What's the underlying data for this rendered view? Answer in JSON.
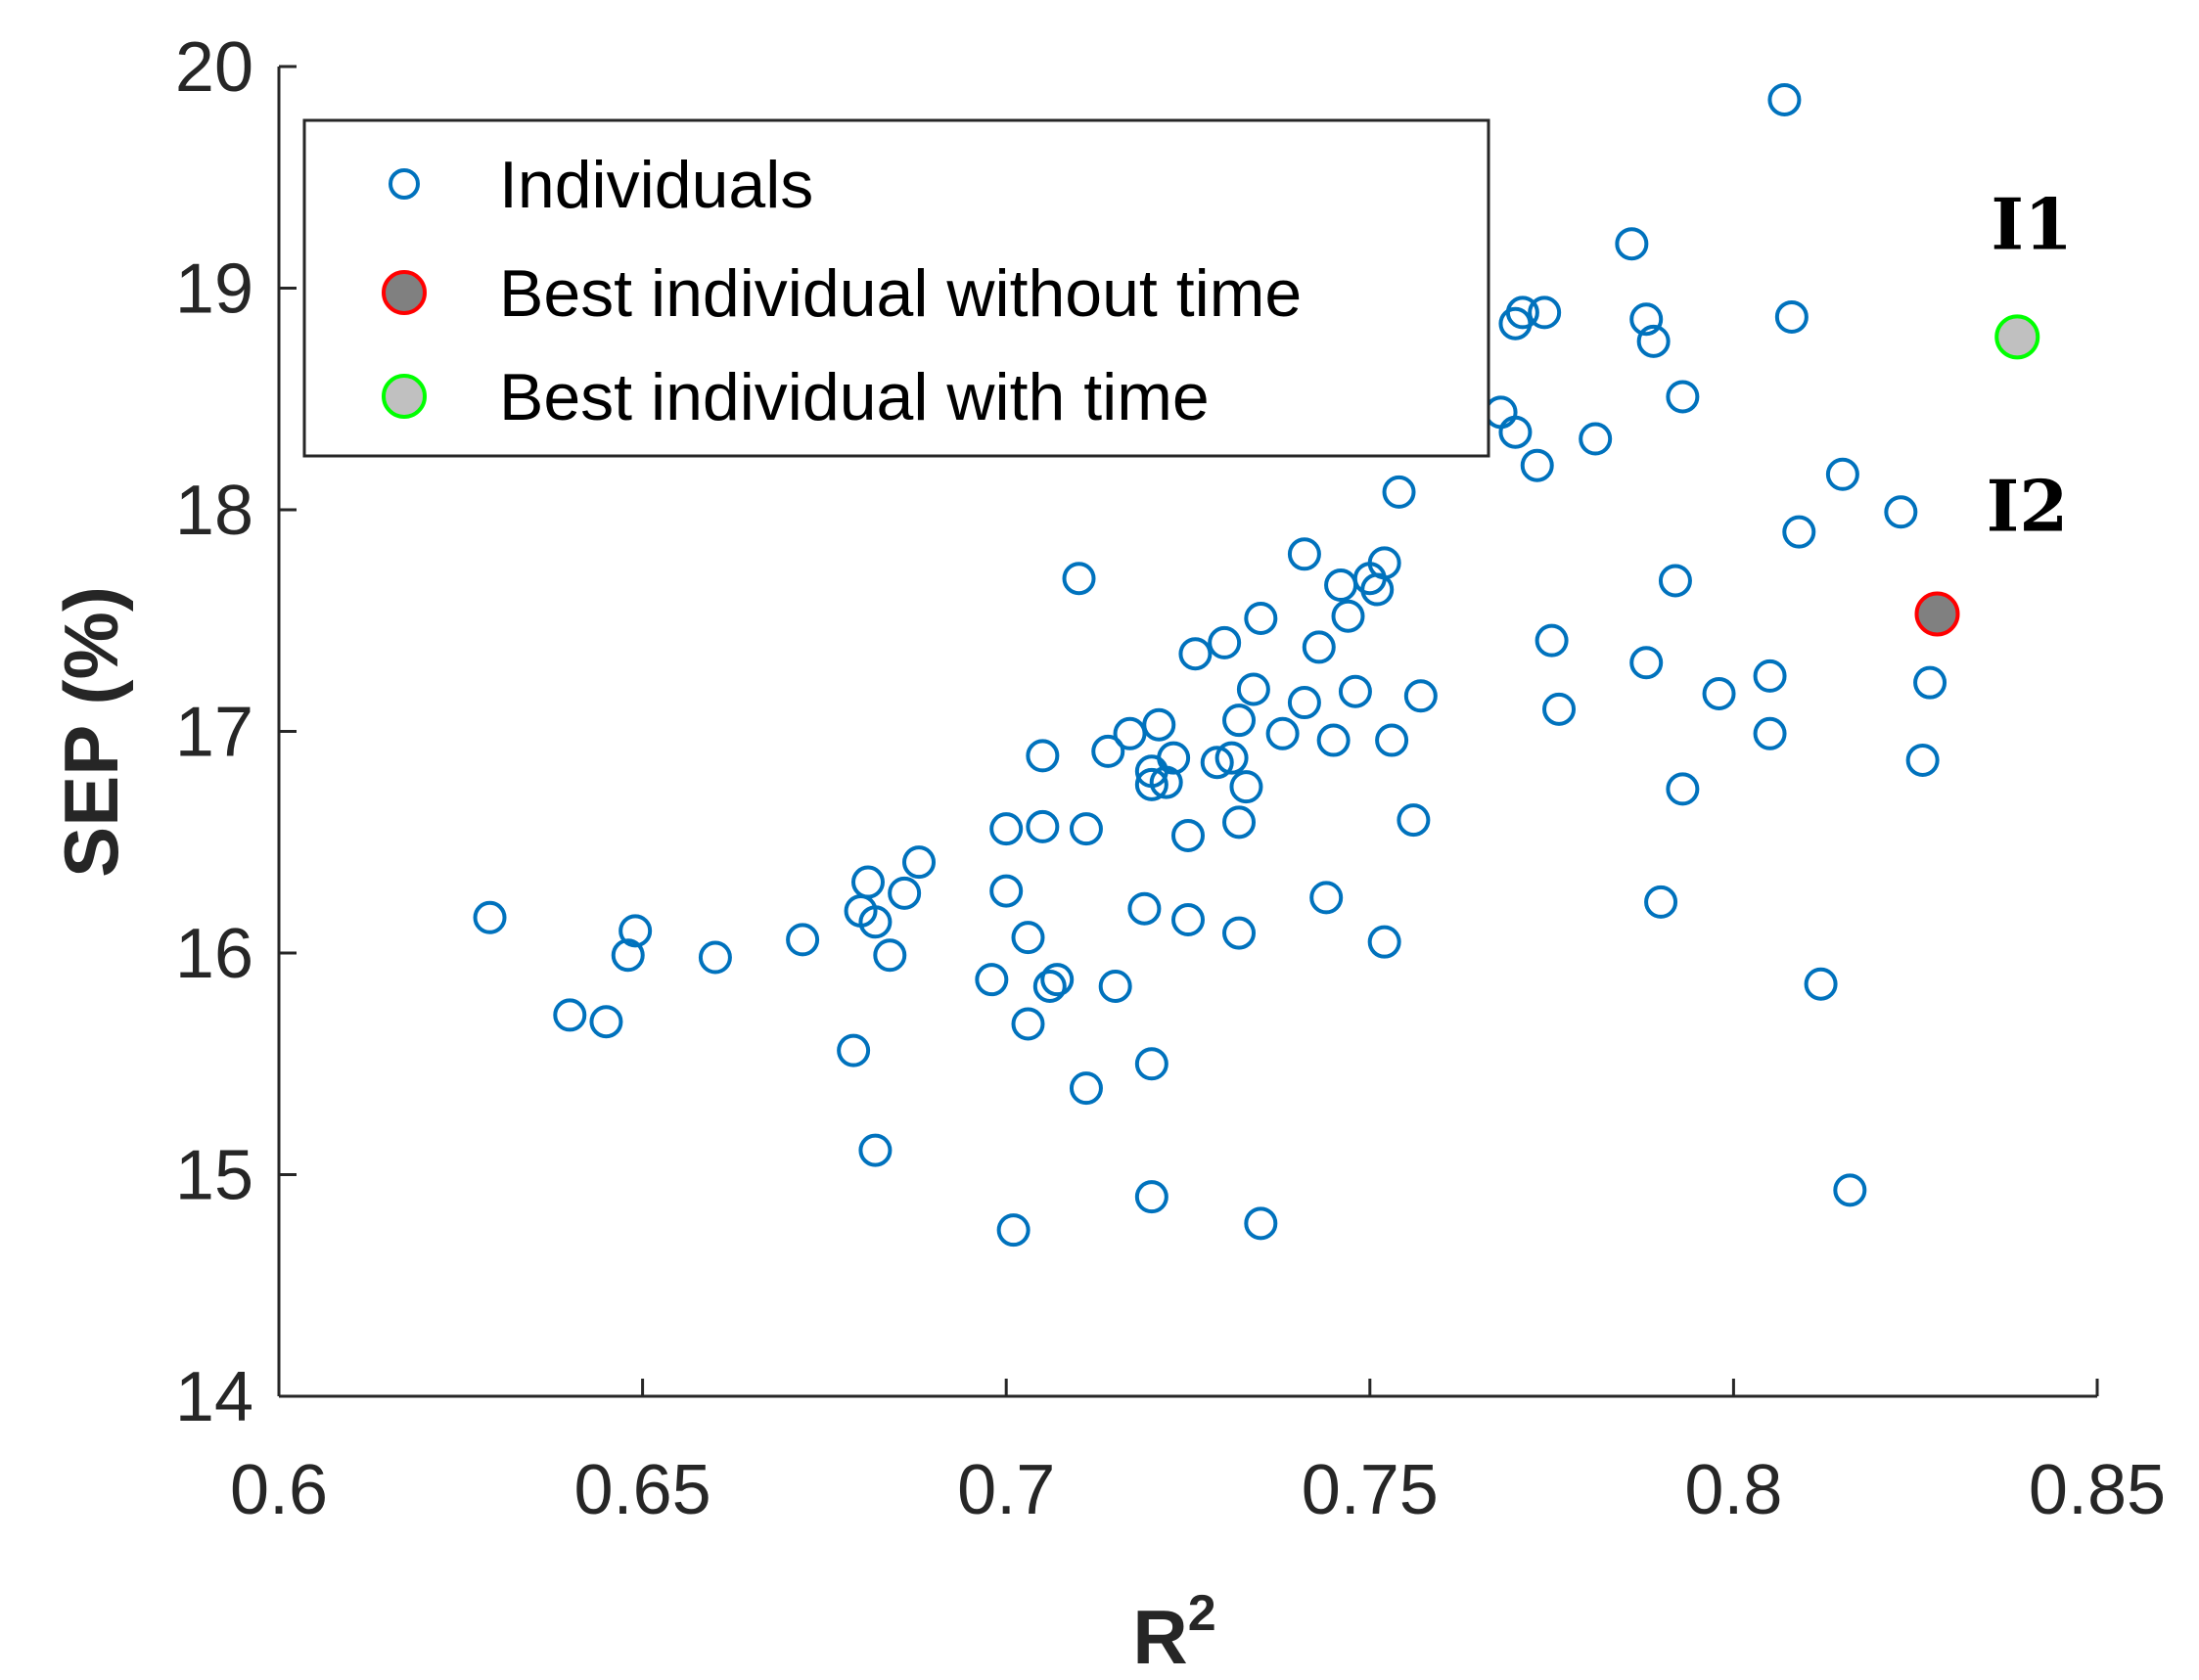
{
  "chart_data": {
    "type": "scatter",
    "xlabel": "R",
    "xlabel_superscript": "2",
    "ylabel": "SEP (%)",
    "xlim": [
      0.6,
      0.85
    ],
    "ylim": [
      14,
      20
    ],
    "xticks": [
      "0.6",
      "0.65",
      "0.7",
      "0.75",
      "0.8",
      "0.85"
    ],
    "yticks": [
      "14",
      "15",
      "16",
      "17",
      "18",
      "19",
      "20"
    ],
    "legend": {
      "placement": "top-left",
      "entries": [
        "Individuals",
        "Best individual without time",
        "Best individual with time"
      ]
    },
    "colors": {
      "individuals": "#0072BD",
      "best_without_time_edge": "#FF0000",
      "best_without_time_fill": "#808080",
      "best_with_time_edge": "#00FF00",
      "best_with_time_fill": "#C0C0C0"
    },
    "series": [
      {
        "name": "Individuals",
        "points": [
          [
            0.629,
            16.16
          ],
          [
            0.64,
            15.72
          ],
          [
            0.645,
            15.69
          ],
          [
            0.648,
            15.99
          ],
          [
            0.649,
            16.1
          ],
          [
            0.66,
            15.98
          ],
          [
            0.672,
            16.06
          ],
          [
            0.679,
            15.56
          ],
          [
            0.68,
            16.19
          ],
          [
            0.681,
            16.32
          ],
          [
            0.682,
            15.11
          ],
          [
            0.682,
            16.14
          ],
          [
            0.684,
            15.99
          ],
          [
            0.686,
            16.27
          ],
          [
            0.688,
            16.41
          ],
          [
            0.698,
            15.88
          ],
          [
            0.7,
            16.28
          ],
          [
            0.7,
            16.56
          ],
          [
            0.701,
            14.75
          ],
          [
            0.703,
            15.68
          ],
          [
            0.703,
            16.07
          ],
          [
            0.705,
            16.89
          ],
          [
            0.705,
            16.57
          ],
          [
            0.706,
            15.85
          ],
          [
            0.707,
            15.88
          ],
          [
            0.71,
            17.69
          ],
          [
            0.711,
            16.56
          ],
          [
            0.711,
            15.39
          ],
          [
            0.714,
            16.91
          ],
          [
            0.715,
            15.85
          ],
          [
            0.717,
            16.99
          ],
          [
            0.719,
            16.2
          ],
          [
            0.72,
            16.76
          ],
          [
            0.72,
            16.82
          ],
          [
            0.72,
            14.9
          ],
          [
            0.72,
            15.5
          ],
          [
            0.721,
            17.03
          ],
          [
            0.722,
            16.77
          ],
          [
            0.723,
            16.88
          ],
          [
            0.725,
            16.15
          ],
          [
            0.725,
            16.53
          ],
          [
            0.726,
            17.35
          ],
          [
            0.729,
            16.86
          ],
          [
            0.73,
            17.4
          ],
          [
            0.731,
            16.88
          ],
          [
            0.732,
            17.05
          ],
          [
            0.732,
            16.09
          ],
          [
            0.732,
            16.59
          ],
          [
            0.733,
            16.75
          ],
          [
            0.734,
            17.19
          ],
          [
            0.735,
            17.51
          ],
          [
            0.735,
            14.78
          ],
          [
            0.738,
            16.99
          ],
          [
            0.741,
            17.13
          ],
          [
            0.741,
            17.8
          ],
          [
            0.743,
            17.38
          ],
          [
            0.744,
            16.25
          ],
          [
            0.745,
            16.96
          ],
          [
            0.746,
            17.66
          ],
          [
            0.747,
            17.52
          ],
          [
            0.748,
            17.18
          ],
          [
            0.75,
            17.69
          ],
          [
            0.751,
            17.64
          ],
          [
            0.752,
            17.76
          ],
          [
            0.752,
            16.05
          ],
          [
            0.753,
            16.96
          ],
          [
            0.754,
            18.08
          ],
          [
            0.756,
            16.6
          ],
          [
            0.757,
            17.16
          ],
          [
            0.768,
            18.44
          ],
          [
            0.77,
            18.35
          ],
          [
            0.77,
            18.84
          ],
          [
            0.771,
            18.89
          ],
          [
            0.773,
            18.2
          ],
          [
            0.774,
            18.89
          ],
          [
            0.775,
            17.41
          ],
          [
            0.776,
            17.1
          ],
          [
            0.781,
            18.32
          ],
          [
            0.786,
            19.2
          ],
          [
            0.788,
            18.86
          ],
          [
            0.788,
            17.31
          ],
          [
            0.789,
            18.76
          ],
          [
            0.79,
            16.23
          ],
          [
            0.792,
            17.68
          ],
          [
            0.793,
            16.74
          ],
          [
            0.793,
            18.51
          ],
          [
            0.798,
            17.17
          ],
          [
            0.805,
            16.99
          ],
          [
            0.805,
            17.25
          ],
          [
            0.807,
            19.85
          ],
          [
            0.808,
            18.87
          ],
          [
            0.809,
            17.9
          ],
          [
            0.812,
            15.86
          ],
          [
            0.815,
            18.16
          ],
          [
            0.816,
            14.93
          ],
          [
            0.823,
            17.99
          ],
          [
            0.826,
            16.87
          ],
          [
            0.827,
            17.22
          ]
        ]
      },
      {
        "name": "Best individual without time",
        "points": [
          [
            0.828,
            17.53
          ]
        ]
      },
      {
        "name": "Best individual with time",
        "points": [
          [
            0.839,
            18.78
          ]
        ]
      }
    ],
    "annotations": [
      {
        "text": "I1",
        "x": 0.839,
        "y": 18.78
      },
      {
        "text": "I2",
        "x": 0.828,
        "y": 17.53
      }
    ]
  }
}
